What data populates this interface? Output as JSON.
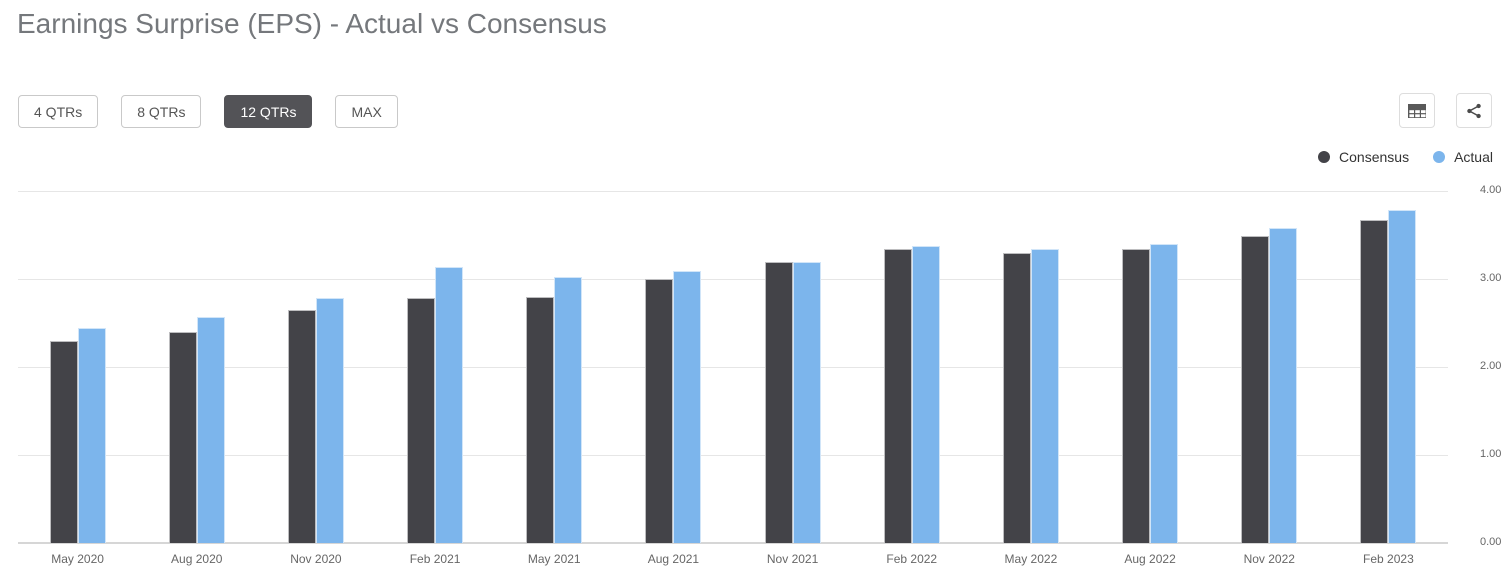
{
  "page": {
    "title": "Earnings Surprise (EPS) - Actual vs Consensus"
  },
  "toolbar": {
    "range_buttons": [
      {
        "label": "4 QTRs",
        "active": false
      },
      {
        "label": "8 QTRs",
        "active": false
      },
      {
        "label": "12 QTRs",
        "active": true
      },
      {
        "label": "MAX",
        "active": false
      }
    ],
    "icons": [
      {
        "name": "table-grid-icon"
      },
      {
        "name": "share-icon"
      }
    ]
  },
  "legend": {
    "items": [
      {
        "label": "Consensus",
        "color": "#434348"
      },
      {
        "label": "Actual",
        "color": "#7cb5ec"
      }
    ]
  },
  "chart_data": {
    "type": "bar",
    "title": "Earnings Surprise (EPS) - Actual vs Consensus",
    "categories": [
      "May 2020",
      "Aug 2020",
      "Nov 2020",
      "Feb 2021",
      "May 2021",
      "Aug 2021",
      "Nov 2021",
      "Feb 2022",
      "May 2022",
      "Aug 2022",
      "Nov 2022",
      "Feb 2023"
    ],
    "series": [
      {
        "name": "Consensus",
        "color": "#434348",
        "values": [
          2.3,
          2.4,
          2.65,
          2.78,
          2.8,
          3.0,
          3.19,
          3.34,
          3.3,
          3.34,
          3.49,
          3.67
        ]
      },
      {
        "name": "Actual",
        "color": "#7cb5ec",
        "values": [
          2.44,
          2.57,
          2.78,
          3.14,
          3.02,
          3.09,
          3.19,
          3.37,
          3.34,
          3.4,
          3.58,
          3.78
        ]
      }
    ],
    "xlabel": "",
    "ylabel": "",
    "ylim": [
      0,
      4
    ],
    "ytick_labels": [
      "4.00",
      "3.00",
      "2.00",
      "1.00",
      "0.00"
    ],
    "ytick_values": [
      4,
      3,
      2,
      1,
      0
    ],
    "grid": true,
    "grid_color": "#e6e6e6",
    "legend_position": "top-right",
    "y_axis_side": "right"
  }
}
